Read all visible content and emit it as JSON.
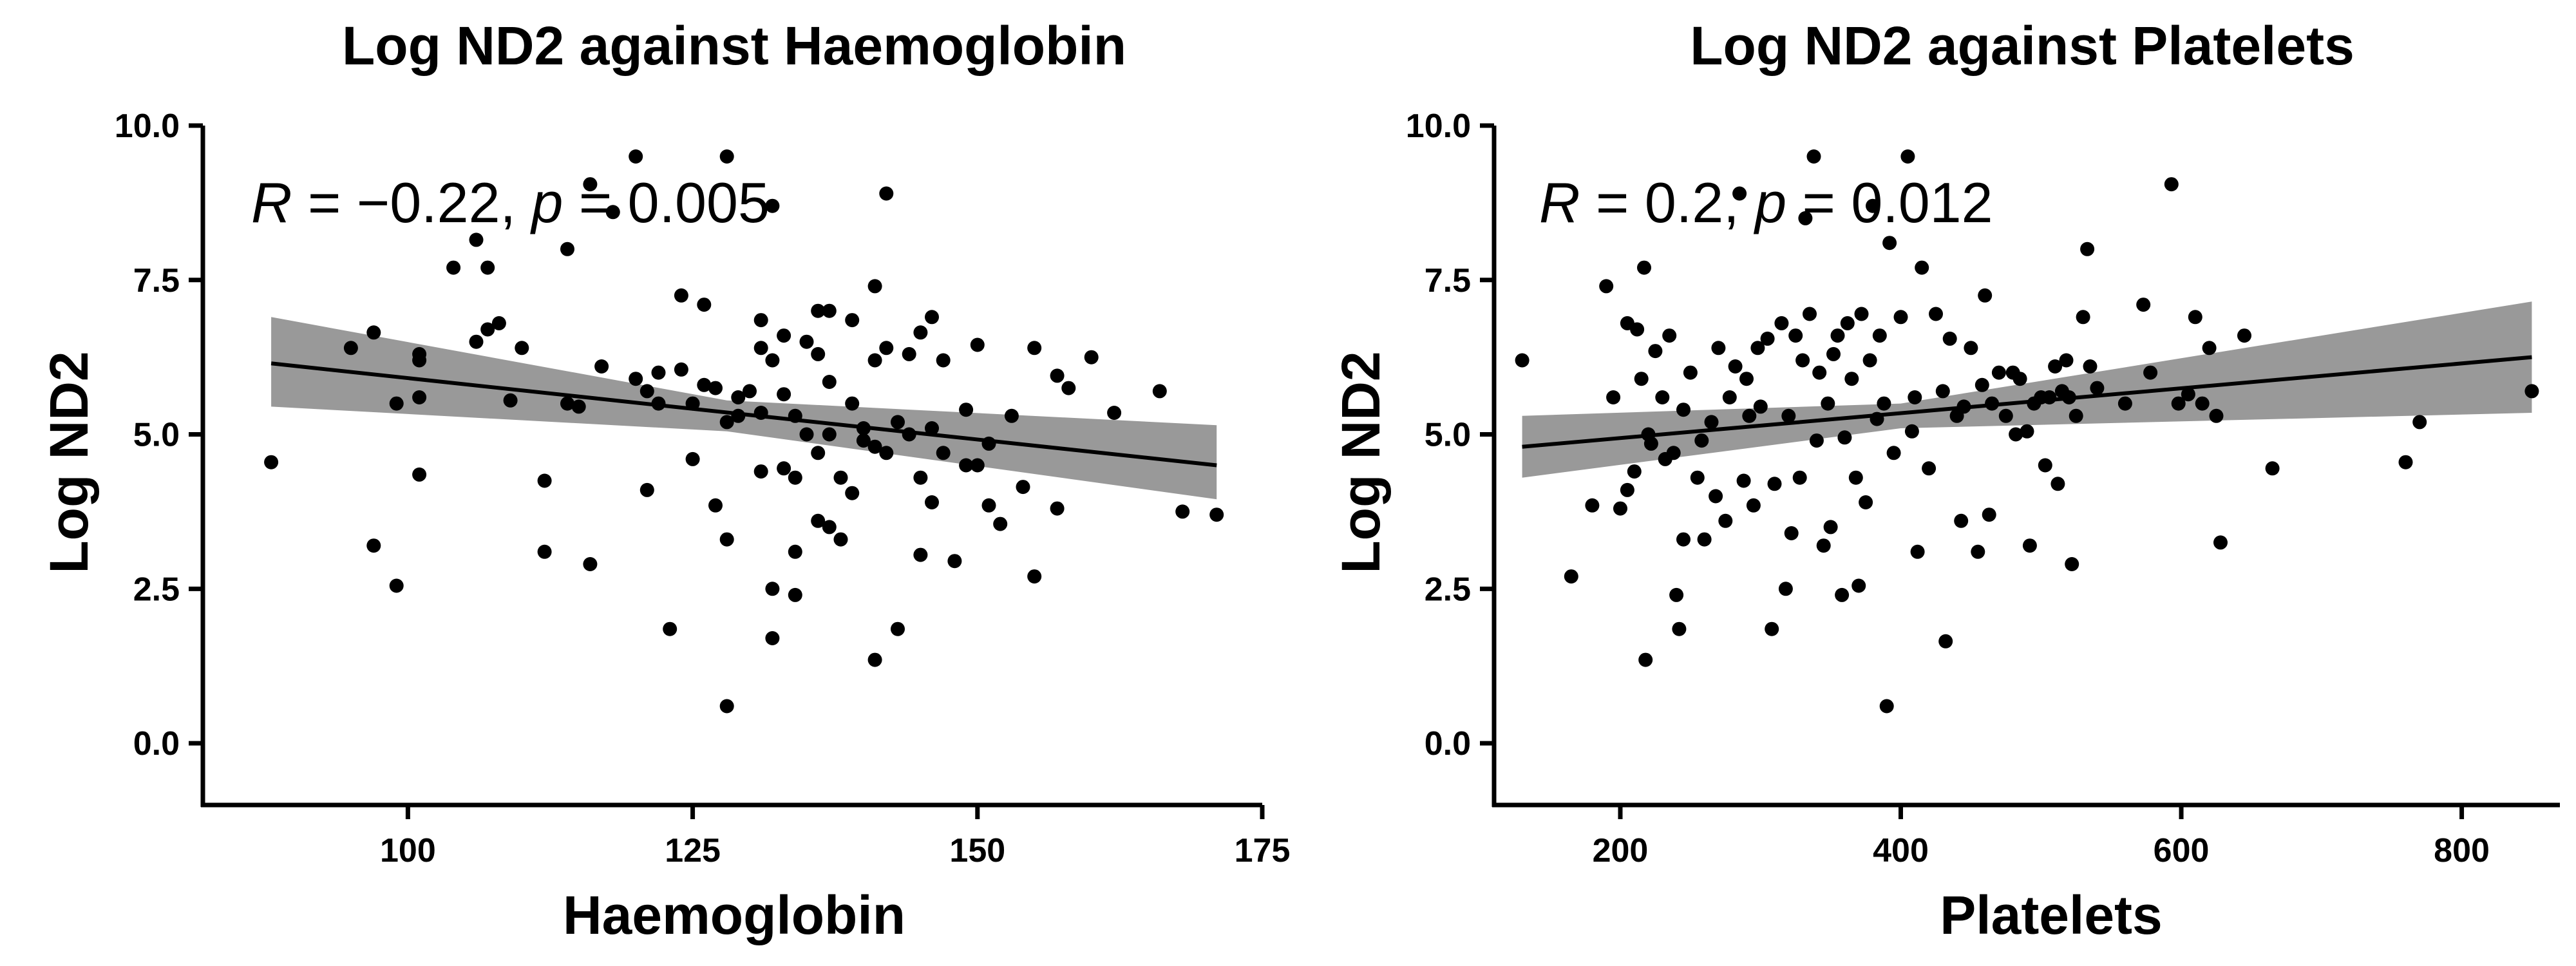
{
  "chart_data": [
    {
      "type": "scatter",
      "title": "Log ND2 against Haemoglobin",
      "xlabel": "Haemoglobin",
      "ylabel": "Log ND2",
      "xlim": [
        82,
        175
      ],
      "ylim": [
        -1,
        10
      ],
      "xticks": [
        100,
        125,
        150,
        175
      ],
      "xtick_labels": [
        "100",
        "125",
        "150",
        "175"
      ],
      "yticks": [
        0,
        2.5,
        5,
        7.5,
        10
      ],
      "ytick_labels": [
        "0.0",
        "2.5",
        "5.0",
        "7.5",
        "10.0"
      ],
      "stat_label": {
        "r_sym": "R",
        "r_text": " = −0.22, ",
        "p_sym": "p",
        "p_text": " = 0.005"
      },
      "regression": {
        "x": [
          88,
          171
        ],
        "y": [
          6.15,
          4.5
        ]
      },
      "ci_band": {
        "x": [
          88,
          128,
          171
        ],
        "lower": [
          5.45,
          5.05,
          3.95
        ],
        "upper": [
          6.9,
          5.55,
          5.15
        ]
      },
      "points": [
        [
          88,
          4.55
        ],
        [
          95,
          6.4
        ],
        [
          97,
          6.65
        ],
        [
          97,
          3.2
        ],
        [
          99,
          5.5
        ],
        [
          99,
          2.55
        ],
        [
          101,
          6.3
        ],
        [
          101,
          6.2
        ],
        [
          101,
          5.6
        ],
        [
          101,
          4.35
        ],
        [
          104,
          7.7
        ],
        [
          106,
          8.15
        ],
        [
          106,
          6.5
        ],
        [
          107,
          6.7
        ],
        [
          107,
          7.7
        ],
        [
          108,
          6.8
        ],
        [
          109,
          5.55
        ],
        [
          110,
          6.4
        ],
        [
          112,
          4.25
        ],
        [
          112,
          3.1
        ],
        [
          114,
          8.0
        ],
        [
          114,
          5.5
        ],
        [
          115,
          5.45
        ],
        [
          116,
          9.05
        ],
        [
          116,
          2.9
        ],
        [
          117,
          6.1
        ],
        [
          118,
          8.6
        ],
        [
          120,
          9.5
        ],
        [
          120,
          5.9
        ],
        [
          121,
          5.7
        ],
        [
          121,
          4.1
        ],
        [
          122,
          6.0
        ],
        [
          122,
          5.5
        ],
        [
          123,
          1.85
        ],
        [
          124,
          7.25
        ],
        [
          124,
          6.05
        ],
        [
          125,
          5.5
        ],
        [
          125,
          4.6
        ],
        [
          126,
          5.8
        ],
        [
          126,
          7.1
        ],
        [
          127,
          5.75
        ],
        [
          127,
          3.85
        ],
        [
          128,
          9.5
        ],
        [
          128,
          3.3
        ],
        [
          128,
          0.6
        ],
        [
          129,
          5.6
        ],
        [
          130,
          5.7
        ],
        [
          131,
          6.85
        ],
        [
          131,
          6.4
        ],
        [
          131,
          4.4
        ],
        [
          132,
          8.7
        ],
        [
          132,
          6.2
        ],
        [
          132,
          2.5
        ],
        [
          132,
          1.7
        ],
        [
          133,
          6.6
        ],
        [
          133,
          4.45
        ],
        [
          134,
          5.3
        ],
        [
          134,
          4.3
        ],
        [
          134,
          2.4
        ],
        [
          135,
          6.5
        ],
        [
          135,
          5.0
        ],
        [
          136,
          7.0
        ],
        [
          136,
          6.3
        ],
        [
          136,
          4.7
        ],
        [
          136,
          3.6
        ],
        [
          137,
          7.0
        ],
        [
          137,
          5.85
        ],
        [
          137,
          5.0
        ],
        [
          138,
          4.3
        ],
        [
          138,
          3.3
        ],
        [
          139,
          6.85
        ],
        [
          139,
          5.5
        ],
        [
          140,
          5.1
        ],
        [
          140,
          4.9
        ],
        [
          141,
          7.4
        ],
        [
          141,
          6.2
        ],
        [
          141,
          4.8
        ],
        [
          141,
          1.35
        ],
        [
          142,
          8.9
        ],
        [
          142,
          6.4
        ],
        [
          142,
          4.7
        ],
        [
          143,
          5.2
        ],
        [
          144,
          6.3
        ],
        [
          144,
          5.0
        ],
        [
          145,
          6.65
        ],
        [
          145,
          4.3
        ],
        [
          145,
          3.05
        ],
        [
          146,
          6.9
        ],
        [
          146,
          5.1
        ],
        [
          146,
          3.9
        ],
        [
          147,
          6.2
        ],
        [
          147,
          4.7
        ],
        [
          148,
          2.95
        ],
        [
          149,
          5.4
        ],
        [
          149,
          4.5
        ],
        [
          150,
          6.45
        ],
        [
          150,
          4.5
        ],
        [
          151,
          4.85
        ],
        [
          151,
          3.85
        ],
        [
          152,
          3.55
        ],
        [
          153,
          5.3
        ],
        [
          154,
          4.15
        ],
        [
          155,
          6.4
        ],
        [
          155,
          2.7
        ],
        [
          157,
          5.95
        ],
        [
          157,
          3.8
        ],
        [
          158,
          5.75
        ],
        [
          160,
          6.25
        ],
        [
          162,
          5.35
        ],
        [
          166,
          5.7
        ],
        [
          168,
          3.75
        ],
        [
          171,
          3.7
        ],
        [
          128,
          5.2
        ],
        [
          131,
          5.35
        ],
        [
          129,
          5.3
        ],
        [
          133,
          5.65
        ],
        [
          134,
          3.1
        ],
        [
          137,
          3.5
        ],
        [
          139,
          4.05
        ],
        [
          143,
          1.85
        ]
      ]
    },
    {
      "type": "scatter",
      "title": "Log ND2 against Platelets",
      "xlabel": "Platelets",
      "ylabel": "Log ND2",
      "xlim": [
        110,
        870
      ],
      "ylim": [
        -1,
        10
      ],
      "xticks": [
        200,
        400,
        600,
        800
      ],
      "xtick_labels": [
        "200",
        "400",
        "600",
        "800"
      ],
      "yticks": [
        0,
        2.5,
        5,
        7.5,
        10
      ],
      "ytick_labels": [
        "0.0",
        "2.5",
        "5.0",
        "7.5",
        "10.0"
      ],
      "stat_label": {
        "r_sym": "R",
        "r_text": " = 0.2, ",
        "p_sym": "p",
        "p_text": " = 0.012"
      },
      "regression": {
        "x": [
          130,
          850
        ],
        "y": [
          4.8,
          6.25
        ]
      },
      "ci_band": {
        "x": [
          130,
          400,
          850
        ],
        "lower": [
          4.3,
          5.1,
          5.35
        ],
        "upper": [
          5.3,
          5.5,
          7.15
        ]
      },
      "points": [
        [
          130,
          6.2
        ],
        [
          165,
          2.7
        ],
        [
          180,
          3.85
        ],
        [
          190,
          7.4
        ],
        [
          195,
          5.6
        ],
        [
          200,
          3.8
        ],
        [
          205,
          6.8
        ],
        [
          205,
          4.1
        ],
        [
          210,
          4.4
        ],
        [
          212,
          6.7
        ],
        [
          215,
          5.9
        ],
        [
          217,
          7.7
        ],
        [
          218,
          1.35
        ],
        [
          220,
          5.0
        ],
        [
          222,
          4.85
        ],
        [
          225,
          6.35
        ],
        [
          230,
          5.6
        ],
        [
          232,
          4.6
        ],
        [
          235,
          6.6
        ],
        [
          238,
          4.7
        ],
        [
          240,
          2.4
        ],
        [
          242,
          1.85
        ],
        [
          245,
          5.4
        ],
        [
          245,
          3.3
        ],
        [
          250,
          6.0
        ],
        [
          255,
          4.3
        ],
        [
          258,
          4.9
        ],
        [
          260,
          3.3
        ],
        [
          265,
          5.2
        ],
        [
          268,
          4.0
        ],
        [
          270,
          6.4
        ],
        [
          275,
          3.6
        ],
        [
          278,
          5.6
        ],
        [
          282,
          6.1
        ],
        [
          285,
          8.9
        ],
        [
          288,
          4.25
        ],
        [
          290,
          5.9
        ],
        [
          292,
          5.3
        ],
        [
          295,
          3.85
        ],
        [
          298,
          6.4
        ],
        [
          300,
          5.45
        ],
        [
          305,
          6.55
        ],
        [
          308,
          1.85
        ],
        [
          310,
          4.2
        ],
        [
          315,
          6.8
        ],
        [
          318,
          2.5
        ],
        [
          320,
          5.3
        ],
        [
          322,
          3.4
        ],
        [
          325,
          6.6
        ],
        [
          328,
          4.3
        ],
        [
          330,
          6.2
        ],
        [
          332,
          8.5
        ],
        [
          335,
          6.95
        ],
        [
          338,
          9.5
        ],
        [
          340,
          4.9
        ],
        [
          342,
          6.0
        ],
        [
          345,
          3.2
        ],
        [
          348,
          5.5
        ],
        [
          350,
          3.5
        ],
        [
          352,
          6.3
        ],
        [
          355,
          6.6
        ],
        [
          358,
          2.4
        ],
        [
          360,
          4.95
        ],
        [
          362,
          6.8
        ],
        [
          365,
          5.9
        ],
        [
          368,
          4.3
        ],
        [
          370,
          2.55
        ],
        [
          372,
          6.95
        ],
        [
          375,
          3.9
        ],
        [
          378,
          6.2
        ],
        [
          380,
          8.7
        ],
        [
          383,
          5.25
        ],
        [
          385,
          6.6
        ],
        [
          388,
          5.5
        ],
        [
          390,
          0.6
        ],
        [
          392,
          8.1
        ],
        [
          395,
          4.7
        ],
        [
          400,
          6.9
        ],
        [
          405,
          9.5
        ],
        [
          408,
          5.05
        ],
        [
          410,
          5.6
        ],
        [
          412,
          3.1
        ],
        [
          415,
          7.7
        ],
        [
          420,
          4.45
        ],
        [
          425,
          6.95
        ],
        [
          430,
          5.7
        ],
        [
          432,
          1.65
        ],
        [
          435,
          6.55
        ],
        [
          440,
          5.3
        ],
        [
          443,
          3.6
        ],
        [
          445,
          5.45
        ],
        [
          450,
          6.4
        ],
        [
          455,
          3.1
        ],
        [
          458,
          5.8
        ],
        [
          460,
          7.25
        ],
        [
          463,
          3.7
        ],
        [
          465,
          5.5
        ],
        [
          470,
          6.0
        ],
        [
          475,
          5.3
        ],
        [
          480,
          6.0
        ],
        [
          482,
          5.0
        ],
        [
          485,
          5.9
        ],
        [
          490,
          5.05
        ],
        [
          492,
          3.2
        ],
        [
          495,
          5.5
        ],
        [
          500,
          5.6
        ],
        [
          503,
          4.5
        ],
        [
          506,
          5.6
        ],
        [
          510,
          6.1
        ],
        [
          512,
          4.2
        ],
        [
          515,
          5.7
        ],
        [
          518,
          6.2
        ],
        [
          520,
          5.6
        ],
        [
          522,
          2.9
        ],
        [
          525,
          5.3
        ],
        [
          530,
          6.9
        ],
        [
          533,
          8.0
        ],
        [
          535,
          6.1
        ],
        [
          540,
          5.75
        ],
        [
          560,
          5.5
        ],
        [
          573,
          7.1
        ],
        [
          578,
          6.0
        ],
        [
          593,
          9.05
        ],
        [
          598,
          5.5
        ],
        [
          605,
          5.65
        ],
        [
          610,
          6.9
        ],
        [
          615,
          5.5
        ],
        [
          620,
          6.4
        ],
        [
          625,
          5.3
        ],
        [
          628,
          3.25
        ],
        [
          645,
          6.6
        ],
        [
          665,
          4.45
        ],
        [
          760,
          4.55
        ],
        [
          770,
          5.2
        ],
        [
          850,
          5.7
        ]
      ]
    }
  ]
}
